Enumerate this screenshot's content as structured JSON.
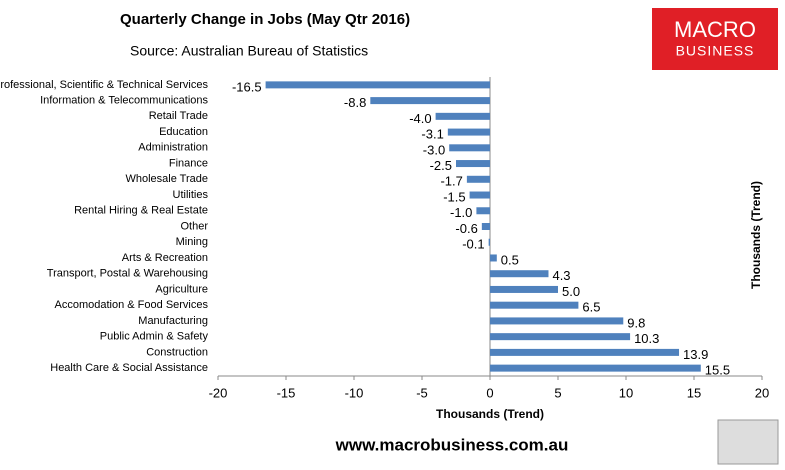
{
  "chart_data": {
    "type": "hbar",
    "title": "Quarterly Change in Jobs (May Qtr 2016)",
    "subtitle": "Source: Australian Bureau of Statistics",
    "x_label": "Thousands (Trend)",
    "side_label": "Thousands (Trend)",
    "categories": [
      "Professional, Scientific & Technical Services",
      "Information & Telecommunications",
      "Retail Trade",
      "Education",
      "Administration",
      "Finance",
      "Wholesale Trade",
      "Utilities",
      "Rental Hiring & Real Estate",
      "Other",
      "Mining",
      "Arts & Recreation",
      "Transport, Postal & Warehousing",
      "Agriculture",
      "Accomodation & Food Services",
      "Manufacturing",
      "Public Admin & Safety",
      "Construction",
      "Health Care & Social Assistance"
    ],
    "values": [
      -16.5,
      -8.8,
      -4,
      -3.1,
      -3,
      -2.5,
      -1.7,
      -1.5,
      -1,
      -0.6,
      -0.1,
      0.5,
      4.3,
      5,
      6.5,
      9.8,
      10.3,
      13.9,
      15.5
    ],
    "value_labels": [
      "-16.5",
      "-8.8",
      "-4.0",
      "-3.1",
      "-3.0",
      "-2.5",
      "-1.7",
      "-1.5",
      "-1.0",
      "-0.6",
      "-0.1",
      "0.5",
      "4.3",
      "5.0",
      "6.5",
      "9.8",
      "10.3",
      "13.9",
      "15.5"
    ],
    "color": "#4f81bd",
    "xlim": [
      -20,
      20
    ],
    "xticks": [
      -20,
      -15,
      -10,
      -5,
      0,
      5,
      10,
      15,
      20
    ],
    "grid": false
  },
  "branding": {
    "logo_top": "MACRO",
    "logo_bottom": "BUSINESS",
    "website": "www.macrobusiness.com.au"
  }
}
